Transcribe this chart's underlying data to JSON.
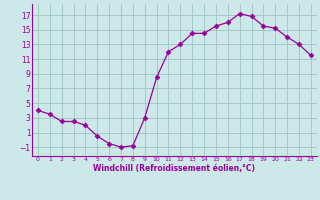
{
  "x": [
    0,
    1,
    2,
    3,
    4,
    5,
    6,
    7,
    8,
    9,
    10,
    11,
    12,
    13,
    14,
    15,
    16,
    17,
    18,
    19,
    20,
    21,
    22,
    23
  ],
  "y": [
    4.0,
    3.5,
    2.5,
    2.5,
    2.0,
    0.5,
    -0.5,
    -1.0,
    -0.8,
    3.0,
    8.5,
    12.0,
    13.0,
    14.5,
    14.5,
    15.5,
    16.0,
    17.2,
    16.8,
    15.5,
    15.2,
    14.0,
    13.0,
    11.5
  ],
  "line_color": "#990099",
  "marker": "D",
  "marker_size": 2.5,
  "bg_color": "#cce8e8",
  "grid_color": "#9ec4c4",
  "xlabel": "Windchill (Refroidissement éolien,°C)",
  "xlabel_color": "#990099",
  "tick_color": "#990099",
  "yticks": [
    -1,
    1,
    3,
    5,
    7,
    9,
    11,
    13,
    15,
    17
  ],
  "ylim": [
    -2.2,
    18.5
  ],
  "xlim": [
    -0.5,
    23.5
  ]
}
